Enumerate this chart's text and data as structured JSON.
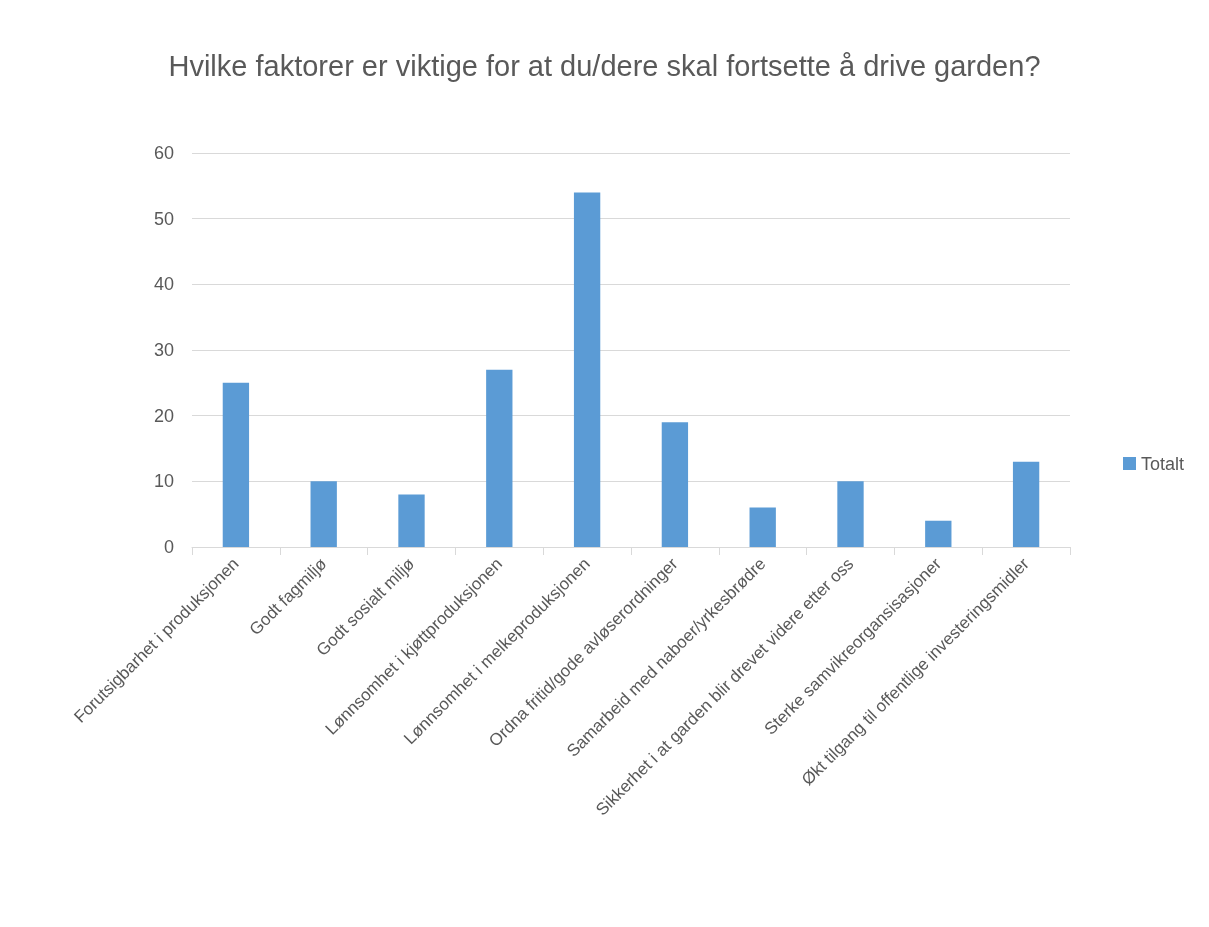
{
  "chart_data": {
    "type": "bar",
    "title": "Hvilke faktorer er viktige for at du/dere skal fortsette å drive garden?",
    "categories": [
      "Forutsigbarhet i produksjonen",
      "Godt fagmiljø",
      "Godt sosialt miljø",
      "Lønnsomhet i kjøttproduksjonen",
      "Lønnsomhet i melkeproduksjonen",
      "Ordna fritid/gode avløserordninger",
      "Samarbeid med naboer/yrkesbrødre",
      "Sikkerhet i at garden blir drevet videre etter oss",
      "Sterke samvikreorgansisasjoner",
      "Økt tilgang til offentlige investeringsmidler"
    ],
    "series": [
      {
        "name": "Totalt",
        "color": "#5b9bd5",
        "values": [
          25,
          10,
          8,
          27,
          54,
          19,
          6,
          10,
          4,
          13
        ]
      }
    ],
    "ylim": [
      0,
      60
    ],
    "yticks": [
      0,
      10,
      20,
      30,
      40,
      50,
      60
    ],
    "grid": "y",
    "legend": "right"
  }
}
